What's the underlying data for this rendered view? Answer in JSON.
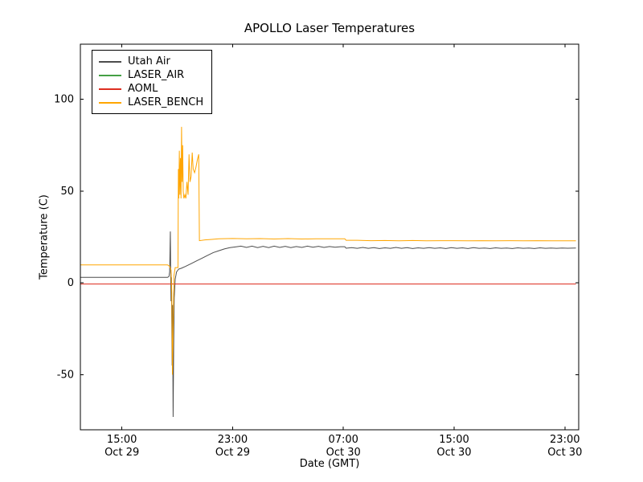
{
  "chart_data": {
    "type": "line",
    "title": "APOLLO Laser Temperatures",
    "xlabel": "Date (GMT)",
    "ylabel": "Temperature (C)",
    "x_unit": "hours since Oct 29 00:00 GMT",
    "xlim": [
      12,
      48
    ],
    "ylim": [
      -80,
      130
    ],
    "grid": false,
    "legend_position": "upper left",
    "yticks": [
      -50,
      0,
      50,
      100
    ],
    "xticks": [
      {
        "value": 15,
        "time": "15:00",
        "date": "Oct 29"
      },
      {
        "value": 23,
        "time": "23:00",
        "date": "Oct 29"
      },
      {
        "value": 31,
        "time": "07:00",
        "date": "Oct 30"
      },
      {
        "value": 39,
        "time": "15:00",
        "date": "Oct 30"
      },
      {
        "value": 47,
        "time": "23:00",
        "date": "Oct 30"
      }
    ],
    "series": [
      {
        "name": "Utah Air",
        "color": "#4d4d4d",
        "points": [
          [
            12,
            3
          ],
          [
            17,
            3
          ],
          [
            18.3,
            3
          ],
          [
            18.4,
            3.5
          ],
          [
            18.45,
            6
          ],
          [
            18.5,
            28
          ],
          [
            18.52,
            10
          ],
          [
            18.55,
            -10
          ],
          [
            18.58,
            3
          ],
          [
            18.6,
            -20
          ],
          [
            18.63,
            -45
          ],
          [
            18.66,
            -12
          ],
          [
            18.7,
            -73
          ],
          [
            18.74,
            -35
          ],
          [
            18.78,
            -8
          ],
          [
            18.85,
            2
          ],
          [
            18.95,
            6
          ],
          [
            19.1,
            7.5
          ],
          [
            19.3,
            8
          ],
          [
            19.6,
            9
          ],
          [
            20,
            10.5
          ],
          [
            20.4,
            12
          ],
          [
            20.8,
            13.5
          ],
          [
            21.2,
            15
          ],
          [
            21.6,
            16.5
          ],
          [
            22,
            17.5
          ],
          [
            22.4,
            18.5
          ],
          [
            22.8,
            19.2
          ],
          [
            23.2,
            19.6
          ],
          [
            23.6,
            20
          ],
          [
            24,
            19.3
          ],
          [
            24.4,
            20
          ],
          [
            24.8,
            19.2
          ],
          [
            25.2,
            19.9
          ],
          [
            25.6,
            19.2
          ],
          [
            26,
            20
          ],
          [
            26.4,
            19.3
          ],
          [
            26.8,
            19.9
          ],
          [
            27.2,
            19.2
          ],
          [
            27.6,
            19.8
          ],
          [
            28,
            19.3
          ],
          [
            28.4,
            20
          ],
          [
            28.8,
            19.4
          ],
          [
            29.2,
            19.9
          ],
          [
            29.6,
            19.3
          ],
          [
            30,
            19.8
          ],
          [
            30.4,
            19.4
          ],
          [
            30.8,
            19.7
          ],
          [
            31.1,
            19.7
          ],
          [
            31.2,
            18.9
          ],
          [
            31.6,
            19.2
          ],
          [
            32,
            18.8
          ],
          [
            32.4,
            19.3
          ],
          [
            32.8,
            18.8
          ],
          [
            33.2,
            19.2
          ],
          [
            33.6,
            18.7
          ],
          [
            34,
            19.1
          ],
          [
            34.4,
            18.8
          ],
          [
            34.8,
            19.3
          ],
          [
            35.2,
            18.8
          ],
          [
            35.6,
            19.2
          ],
          [
            36,
            18.7
          ],
          [
            36.4,
            19.1
          ],
          [
            36.8,
            18.8
          ],
          [
            37.2,
            19.2
          ],
          [
            37.6,
            18.8
          ],
          [
            38,
            19.1
          ],
          [
            38.4,
            18.7
          ],
          [
            38.8,
            19.2
          ],
          [
            39.2,
            18.8
          ],
          [
            39.6,
            19.1
          ],
          [
            40,
            18.7
          ],
          [
            40.4,
            19.2
          ],
          [
            40.8,
            18.8
          ],
          [
            41.2,
            19
          ],
          [
            41.6,
            18.7
          ],
          [
            42,
            19.1
          ],
          [
            42.4,
            18.8
          ],
          [
            42.8,
            19
          ],
          [
            43.2,
            18.7
          ],
          [
            43.6,
            19.1
          ],
          [
            44,
            18.8
          ],
          [
            44.4,
            19
          ],
          [
            44.8,
            18.7
          ],
          [
            45.2,
            19.1
          ],
          [
            45.6,
            18.8
          ],
          [
            46,
            19
          ],
          [
            46.4,
            18.8
          ],
          [
            46.8,
            19
          ],
          [
            47.2,
            18.9
          ],
          [
            47.8,
            19
          ]
        ]
      },
      {
        "name": "LASER_AIR",
        "color": "#44a044",
        "points": [
          [
            12,
            -0.6
          ],
          [
            47.8,
            -0.6
          ]
        ]
      },
      {
        "name": "AOML",
        "color": "#dd2e20",
        "points": [
          [
            12,
            -0.6
          ],
          [
            47.8,
            -0.6
          ]
        ]
      },
      {
        "name": "LASER_BENCH",
        "color": "#ffa500",
        "points": [
          [
            12,
            9.8
          ],
          [
            17,
            9.8
          ],
          [
            18.3,
            9.8
          ],
          [
            18.45,
            9
          ],
          [
            18.55,
            7
          ],
          [
            18.6,
            -5
          ],
          [
            18.65,
            -50
          ],
          [
            18.7,
            -25
          ],
          [
            18.76,
            4
          ],
          [
            18.85,
            8.3
          ],
          [
            19.0,
            8.3
          ],
          [
            19.05,
            8.3
          ],
          [
            19.08,
            62
          ],
          [
            19.11,
            46
          ],
          [
            19.15,
            72
          ],
          [
            19.19,
            48
          ],
          [
            19.23,
            68
          ],
          [
            19.27,
            46
          ],
          [
            19.31,
            85
          ],
          [
            19.35,
            55
          ],
          [
            19.39,
            75
          ],
          [
            19.43,
            50
          ],
          [
            19.48,
            46
          ],
          [
            19.55,
            48
          ],
          [
            19.62,
            46
          ],
          [
            19.7,
            55
          ],
          [
            19.78,
            48
          ],
          [
            19.85,
            70
          ],
          [
            19.92,
            55
          ],
          [
            20.0,
            58
          ],
          [
            20.08,
            71
          ],
          [
            20.15,
            62
          ],
          [
            20.25,
            60
          ],
          [
            20.35,
            63
          ],
          [
            20.45,
            67
          ],
          [
            20.55,
            70
          ],
          [
            20.6,
            23
          ],
          [
            21,
            23.4
          ],
          [
            21.5,
            23.7
          ],
          [
            22,
            24
          ],
          [
            23,
            24.2
          ],
          [
            24,
            24
          ],
          [
            25,
            24.1
          ],
          [
            26,
            23.9
          ],
          [
            27,
            24.1
          ],
          [
            28,
            23.9
          ],
          [
            29,
            24
          ],
          [
            30,
            24
          ],
          [
            31.1,
            24
          ],
          [
            31.2,
            23.2
          ],
          [
            32,
            23.2
          ],
          [
            33,
            23
          ],
          [
            34,
            23.1
          ],
          [
            35,
            22.9
          ],
          [
            36,
            23.1
          ],
          [
            37,
            22.9
          ],
          [
            38,
            23
          ],
          [
            39,
            23
          ],
          [
            40,
            22.9
          ],
          [
            41,
            23
          ],
          [
            42,
            22.9
          ],
          [
            43,
            23
          ],
          [
            44,
            22.9
          ],
          [
            45,
            23
          ],
          [
            46,
            22.9
          ],
          [
            47,
            22.9
          ],
          [
            47.8,
            22.9
          ]
        ]
      }
    ]
  }
}
